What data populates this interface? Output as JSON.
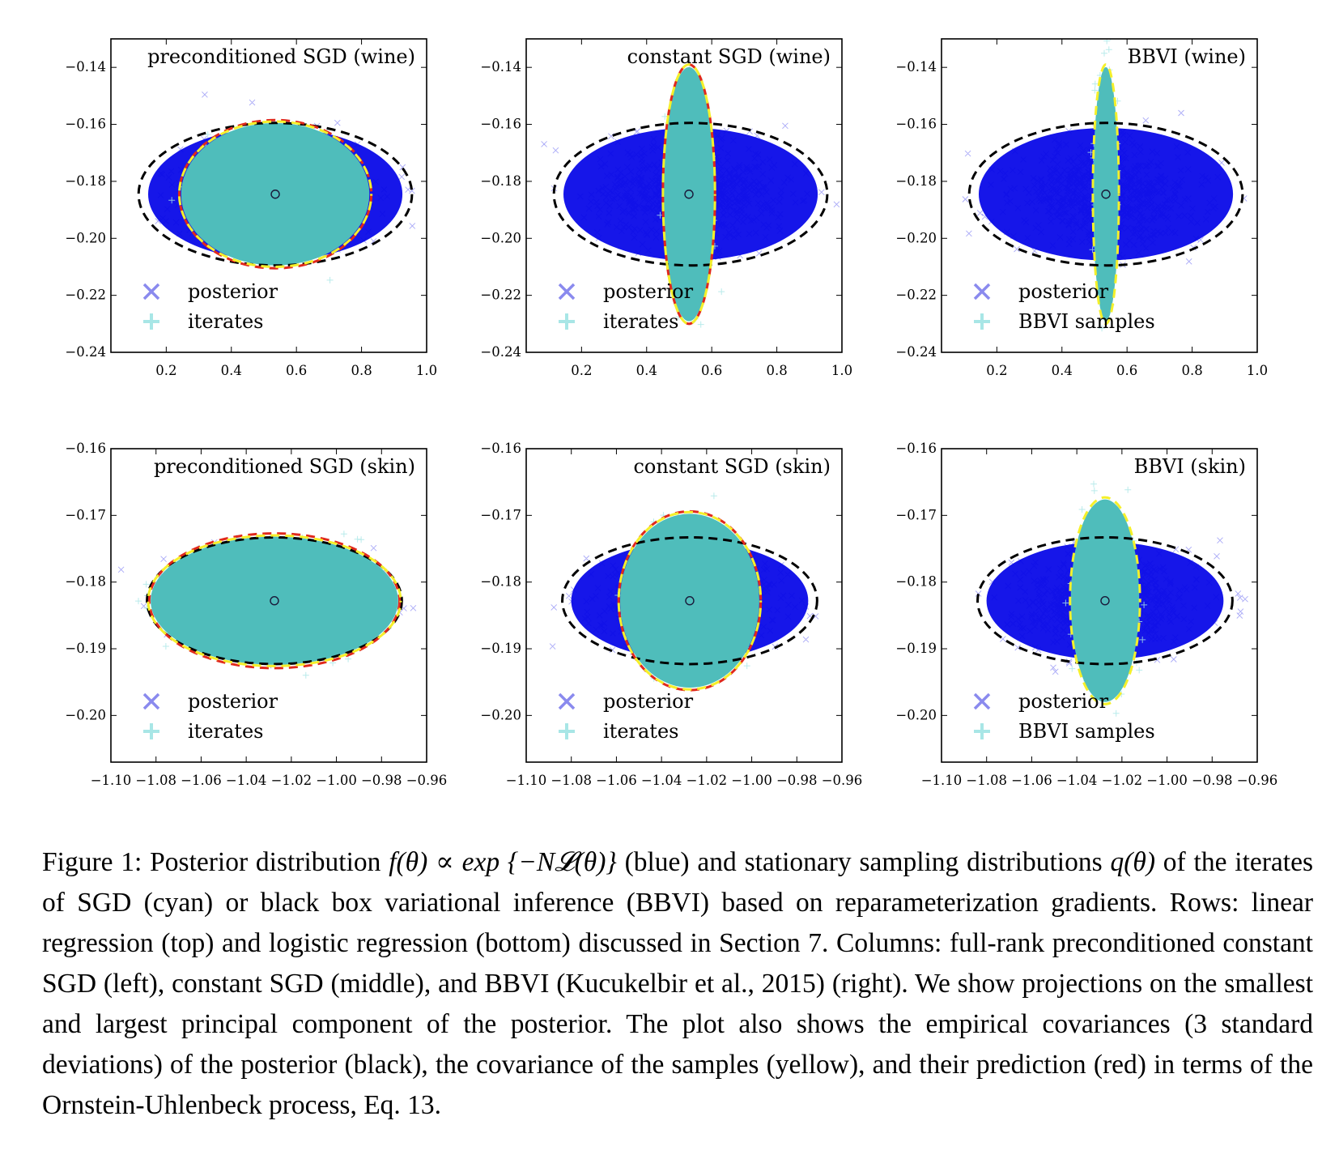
{
  "colors": {
    "posterior": "#0a0ae8",
    "posterior_legend": "#8a8aee",
    "iterates": "#4fbdbb",
    "iterates_legend": "#a8e6e6",
    "cov_posterior": "#000000",
    "cov_samples": "#f5f02a",
    "cov_prediction": "#e0281c"
  },
  "chart_data": [
    {
      "type": "scatter",
      "title": "preconditioned SGD (wine)",
      "xlim": [
        0.03,
        1.0
      ],
      "ylim": [
        -0.24,
        -0.13
      ],
      "xticks": [
        0.2,
        0.4,
        0.6,
        0.8,
        1.0
      ],
      "xtick_labels": [
        "0.2",
        "0.4",
        "0.6",
        "0.8",
        "1.0"
      ],
      "yticks": [
        -0.14,
        -0.16,
        -0.18,
        -0.2,
        -0.22,
        -0.24
      ],
      "ytick_labels": [
        "−0.14",
        "−0.16",
        "−0.18",
        "−0.20",
        "−0.22",
        "−0.24"
      ],
      "legend": [
        "posterior",
        "iterates"
      ],
      "legend_loc": "lower left",
      "center": [
        0.535,
        -0.1845
      ],
      "posterior_cov": {
        "cx": 0.535,
        "cy": -0.1845,
        "rx": 0.42,
        "ry": 0.025
      },
      "samples_cov": {
        "cx": 0.535,
        "cy": -0.1845,
        "rx": 0.295,
        "ry": 0.0255
      },
      "predicted_cov": {
        "cx": 0.535,
        "cy": -0.1845,
        "rx": 0.295,
        "ry": 0.026
      }
    },
    {
      "type": "scatter",
      "title": "constant SGD (wine)",
      "xlim": [
        0.03,
        1.0
      ],
      "ylim": [
        -0.24,
        -0.13
      ],
      "xticks": [
        0.2,
        0.4,
        0.6,
        0.8,
        1.0
      ],
      "xtick_labels": [
        "0.2",
        "0.4",
        "0.6",
        "0.8",
        "1.0"
      ],
      "yticks": [
        -0.14,
        -0.16,
        -0.18,
        -0.2,
        -0.22,
        -0.24
      ],
      "ytick_labels": [
        "−0.14",
        "−0.16",
        "−0.18",
        "−0.20",
        "−0.22",
        "−0.24"
      ],
      "legend": [
        "posterior",
        "iterates"
      ],
      "legend_loc": "lower left",
      "center": [
        0.53,
        -0.1845
      ],
      "posterior_cov": {
        "cx": 0.535,
        "cy": -0.1845,
        "rx": 0.42,
        "ry": 0.025
      },
      "samples_cov": {
        "cx": 0.53,
        "cy": -0.1845,
        "rx": 0.08,
        "ry": 0.0455
      },
      "predicted_cov": {
        "cx": 0.53,
        "cy": -0.1845,
        "rx": 0.08,
        "ry": 0.0455
      }
    },
    {
      "type": "scatter",
      "title": "BBVI (wine)",
      "xlim": [
        0.03,
        1.0
      ],
      "ylim": [
        -0.24,
        -0.13
      ],
      "xticks": [
        0.2,
        0.4,
        0.6,
        0.8,
        1.0
      ],
      "xtick_labels": [
        "0.2",
        "0.4",
        "0.6",
        "0.8",
        "1.0"
      ],
      "yticks": [
        -0.14,
        -0.16,
        -0.18,
        -0.2,
        -0.22,
        -0.24
      ],
      "ytick_labels": [
        "−0.14",
        "−0.16",
        "−0.18",
        "−0.20",
        "−0.22",
        "−0.24"
      ],
      "legend": [
        "posterior",
        "BBVI samples"
      ],
      "legend_loc": "lower left",
      "center": [
        0.535,
        -0.1845
      ],
      "posterior_cov": {
        "cx": 0.535,
        "cy": -0.1845,
        "rx": 0.42,
        "ry": 0.025
      },
      "samples_cov": {
        "cx": 0.535,
        "cy": -0.1845,
        "rx": 0.04,
        "ry": 0.0455
      },
      "predicted_cov": null
    },
    {
      "type": "scatter",
      "title": "preconditioned SGD (skin)",
      "xlim": [
        -1.1,
        -0.96
      ],
      "ylim": [
        -0.207,
        -0.16
      ],
      "xticks": [
        -1.1,
        -1.08,
        -1.06,
        -1.04,
        -1.02,
        -1.0,
        -0.98,
        -0.96
      ],
      "xtick_labels": [
        "−1.10",
        "−1.08",
        "−1.06",
        "−1.04",
        "−1.02",
        "−1.00",
        "−0.98",
        "−0.96"
      ],
      "yticks": [
        -0.16,
        -0.17,
        -0.18,
        -0.19,
        -0.2
      ],
      "ytick_labels": [
        "−0.16",
        "−0.17",
        "−0.18",
        "−0.19",
        "−0.20"
      ],
      "legend": [
        "posterior",
        "iterates"
      ],
      "legend_loc": "lower left",
      "center": [
        -1.0275,
        -0.1828
      ],
      "posterior_cov": {
        "cx": -1.0275,
        "cy": -0.1828,
        "rx": 0.0565,
        "ry": 0.0095
      },
      "samples_cov": {
        "cx": -1.0275,
        "cy": -0.1828,
        "rx": 0.056,
        "ry": 0.0098
      },
      "predicted_cov": {
        "cx": -1.0275,
        "cy": -0.1828,
        "rx": 0.0555,
        "ry": 0.0101
      }
    },
    {
      "type": "scatter",
      "title": "constant SGD (skin)",
      "xlim": [
        -1.1,
        -0.96
      ],
      "ylim": [
        -0.207,
        -0.16
      ],
      "xticks": [
        -1.1,
        -1.08,
        -1.06,
        -1.04,
        -1.02,
        -1.0,
        -0.98,
        -0.96
      ],
      "xtick_labels": [
        "−1.10",
        "−1.08",
        "−1.06",
        "−1.04",
        "−1.02",
        "−1.00",
        "−0.98",
        "−0.96"
      ],
      "yticks": [
        -0.16,
        -0.17,
        -0.18,
        -0.19,
        -0.2
      ],
      "ytick_labels": [
        "−0.16",
        "−0.17",
        "−0.18",
        "−0.19",
        "−0.20"
      ],
      "legend": [
        "posterior",
        "iterates"
      ],
      "legend_loc": "lower left",
      "center": [
        -1.0275,
        -0.1828
      ],
      "posterior_cov": {
        "cx": -1.0275,
        "cy": -0.1828,
        "rx": 0.0565,
        "ry": 0.0095
      },
      "samples_cov": {
        "cx": -1.0275,
        "cy": -0.1828,
        "rx": 0.0315,
        "ry": 0.0133
      },
      "predicted_cov": {
        "cx": -1.0275,
        "cy": -0.1828,
        "rx": 0.0315,
        "ry": 0.0134
      }
    },
    {
      "type": "scatter",
      "title": "BBVI (skin)",
      "xlim": [
        -1.1,
        -0.96
      ],
      "ylim": [
        -0.207,
        -0.16
      ],
      "xticks": [
        -1.1,
        -1.08,
        -1.06,
        -1.04,
        -1.02,
        -1.0,
        -0.98,
        -0.96
      ],
      "xtick_labels": [
        "−1.10",
        "−1.08",
        "−1.06",
        "−1.04",
        "−1.02",
        "−1.00",
        "−0.98",
        "−0.96"
      ],
      "yticks": [
        -0.16,
        -0.17,
        -0.18,
        -0.19,
        -0.2
      ],
      "ytick_labels": [
        "−0.16",
        "−0.17",
        "−0.18",
        "−0.19",
        "−0.20"
      ],
      "legend": [
        "posterior",
        "BBVI samples"
      ],
      "legend_loc": "lower left",
      "center": [
        -1.0275,
        -0.1828
      ],
      "posterior_cov": {
        "cx": -1.0275,
        "cy": -0.1828,
        "rx": 0.0565,
        "ry": 0.0095
      },
      "samples_cov": {
        "cx": -1.0275,
        "cy": -0.1828,
        "rx": 0.0155,
        "ry": 0.0155
      },
      "predicted_cov": null
    }
  ],
  "caption": {
    "p1": "Figure 1: Posterior distribution ",
    "m1": "f(θ) ∝ exp {−N𝓛(θ)}",
    "p2": " (blue) and stationary sampling distributions ",
    "m2": "q(θ)",
    "p3": " of the iterates of SGD (cyan) or black box variational inference (BBVI) based on reparameterization gradients. Rows: linear regression (top) and logistic regression (bottom) discussed in Section 7. Columns: full-rank preconditioned constant SGD (left), constant SGD (middle), and BBVI (Kucukelbir et al., 2015) (right). We show projections on the smallest and largest principal component of the posterior. The plot also shows the empirical covariances (3 standard deviations) of the posterior (black), the covariance of the samples (yellow), and their prediction (red) in terms of the Ornstein-Uhlenbeck process, Eq. 13."
  }
}
